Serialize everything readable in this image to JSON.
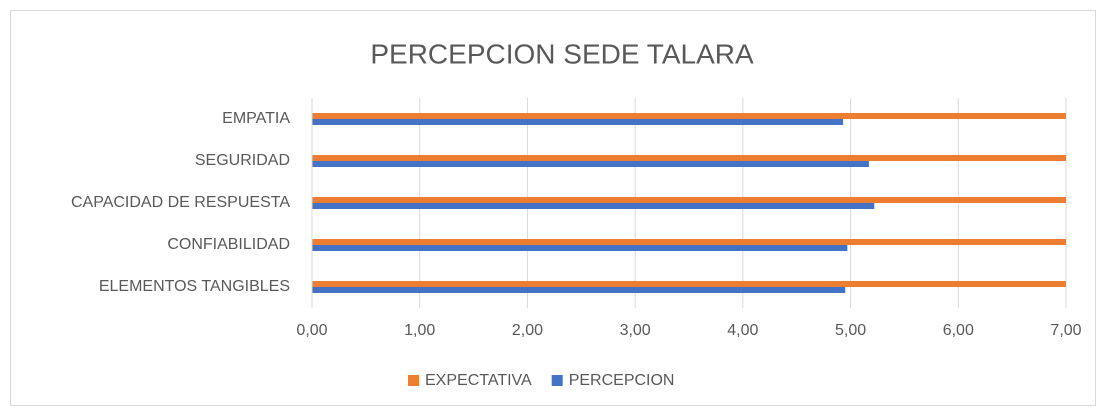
{
  "chart_data": {
    "type": "hbar",
    "title": "PERCEPCION SEDE TALARA",
    "categories": [
      "EMPATIA",
      "SEGURIDAD",
      "CAPACIDAD DE RESPUESTA",
      "CONFIABILIDAD",
      "ELEMENTOS TANGIBLES"
    ],
    "series": [
      {
        "name": "EXPECTATIVA",
        "color": "#ed7d31",
        "values": [
          7,
          7,
          7,
          7,
          7
        ]
      },
      {
        "name": "PERCEPCION",
        "color": "#4472c4",
        "values": [
          4.93,
          5.17,
          5.22,
          4.97,
          4.95
        ]
      }
    ],
    "xlim": [
      0,
      7
    ],
    "xticks": [
      {
        "value": 0,
        "label": "0,00"
      },
      {
        "value": 1,
        "label": "1,00"
      },
      {
        "value": 2,
        "label": "2,00"
      },
      {
        "value": 3,
        "label": "3,00"
      },
      {
        "value": 4,
        "label": "4,00"
      },
      {
        "value": 5,
        "label": "5,00"
      },
      {
        "value": 6,
        "label": "6,00"
      },
      {
        "value": 7,
        "label": "7,00"
      }
    ],
    "grid": true,
    "legend": "bottom"
  }
}
